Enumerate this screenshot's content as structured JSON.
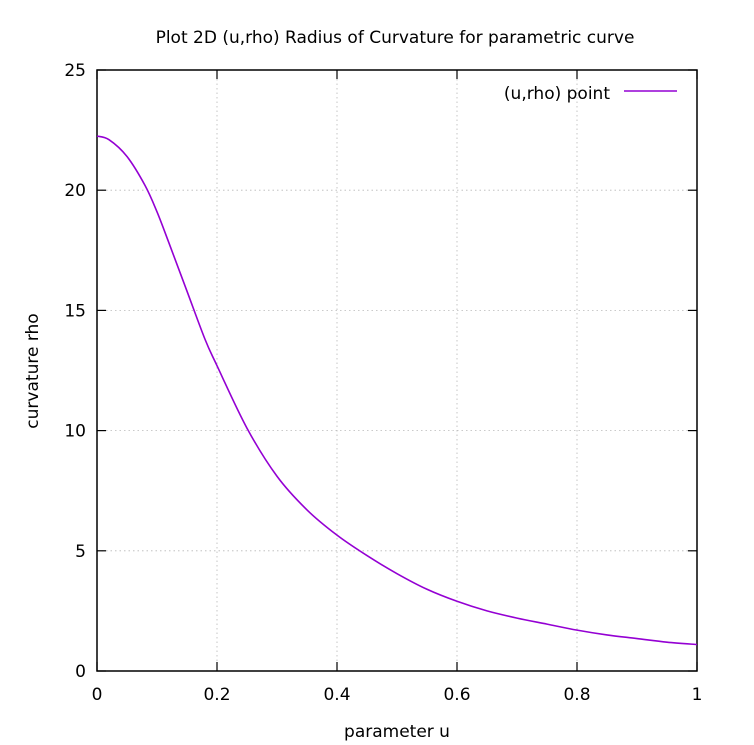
{
  "chart_data": {
    "type": "line",
    "title": "Plot 2D (u,rho) Radius of Curvature for parametric curve",
    "xlabel": "parameter u",
    "ylabel": "curvature rho",
    "xlim": [
      0,
      1
    ],
    "ylim": [
      0,
      25
    ],
    "xticks": [
      0,
      0.2,
      0.4,
      0.6,
      0.8,
      1
    ],
    "xtick_labels": [
      "0",
      "0.2",
      "0.4",
      "0.6",
      "0.8",
      "1"
    ],
    "yticks": [
      0,
      5,
      10,
      15,
      20,
      25
    ],
    "ytick_labels": [
      "0",
      "5",
      "10",
      "15",
      "20",
      "25"
    ],
    "grid": true,
    "legend_position": "top-right",
    "series": [
      {
        "name": "(u,rho) point",
        "color": "#9400d3",
        "x": [
          0,
          0.02,
          0.05,
          0.08,
          0.1,
          0.12,
          0.15,
          0.18,
          0.2,
          0.25,
          0.3,
          0.35,
          0.4,
          0.45,
          0.5,
          0.55,
          0.6,
          0.65,
          0.7,
          0.75,
          0.8,
          0.85,
          0.9,
          0.95,
          1.0
        ],
        "y": [
          22.25,
          22.1,
          21.4,
          20.2,
          19.1,
          17.8,
          15.8,
          13.8,
          12.7,
          10.1,
          8.1,
          6.7,
          5.65,
          4.8,
          4.05,
          3.4,
          2.9,
          2.5,
          2.2,
          1.95,
          1.7,
          1.5,
          1.35,
          1.2,
          1.1
        ]
      }
    ]
  }
}
